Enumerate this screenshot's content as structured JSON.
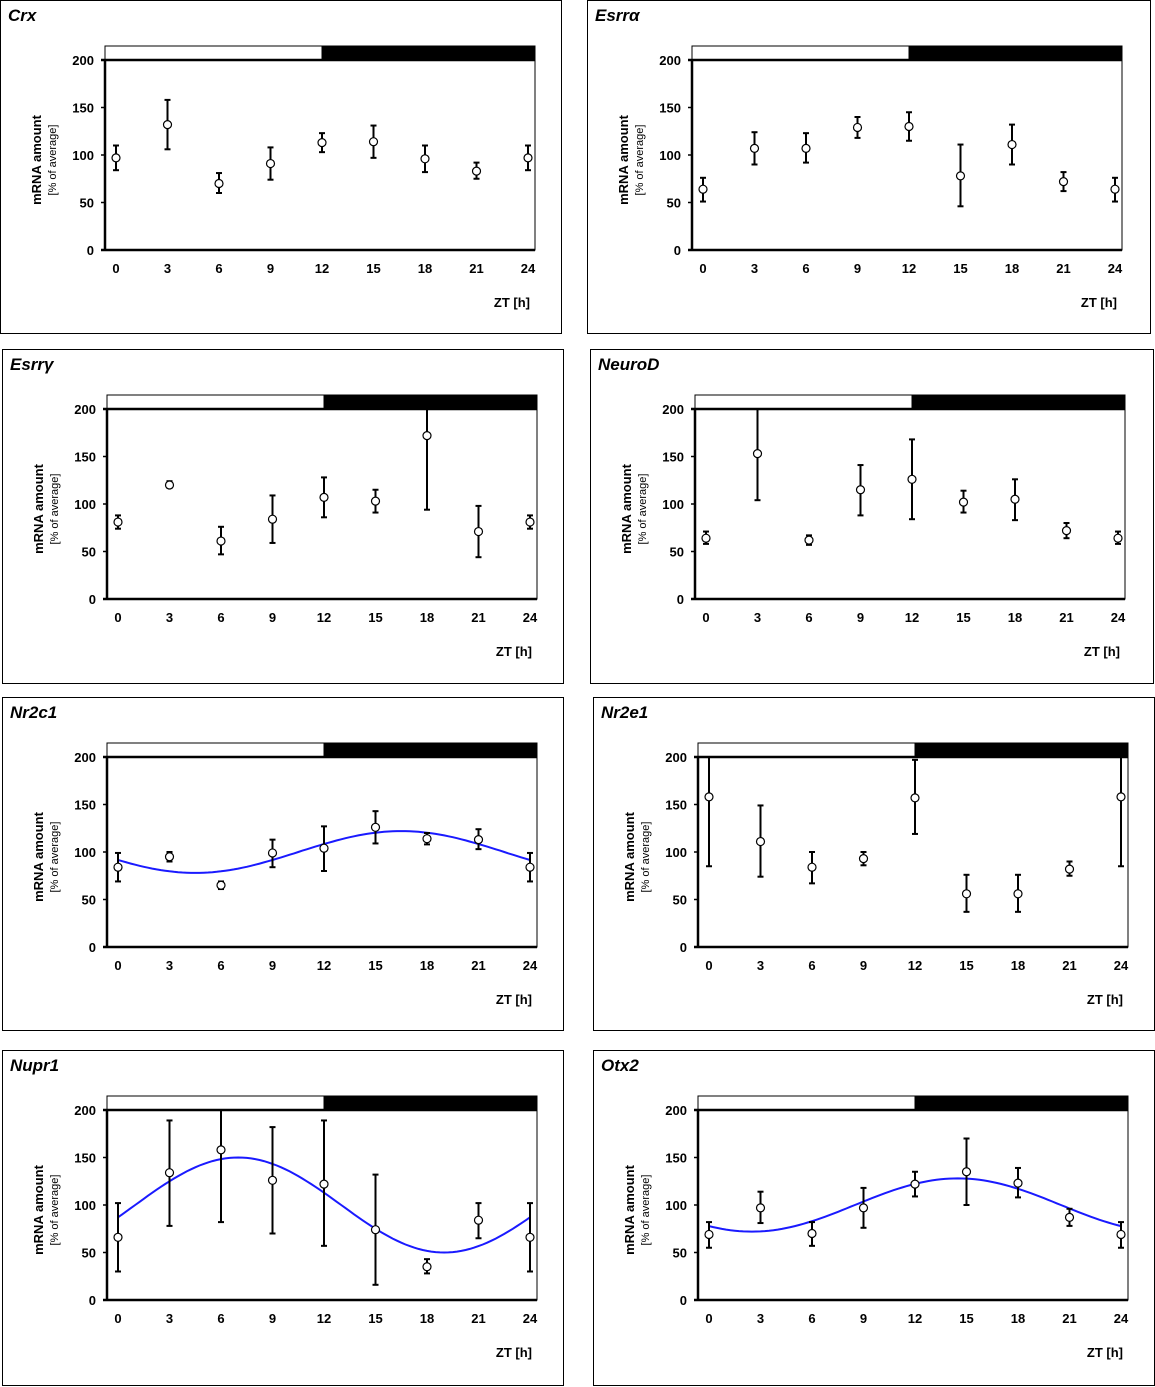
{
  "figure": {
    "y_axis_label_main": "mRNA amount",
    "y_axis_label_sub": "[% of average]",
    "x_axis_label": "ZT [h]",
    "light_phase": "light (ZT 0-12)",
    "dark_phase": "dark (ZT 12-24)",
    "colors": {
      "fit_curve": "#1a1aff",
      "axes": "#000000",
      "marker_fill": "#ffffff",
      "dark_bar": "#000000",
      "light_bar": "#ffffff"
    }
  },
  "chart_data": [
    {
      "type": "scatter",
      "title": "Crx",
      "xlabel": "ZT [h]",
      "ylabel": "mRNA amount [% of average]",
      "x": [
        0,
        3,
        6,
        9,
        12,
        15,
        18,
        21,
        24
      ],
      "xticks": [
        "0",
        "3",
        "6",
        "9",
        "12",
        "15",
        "18",
        "21",
        "24"
      ],
      "yticks": [
        "0",
        "50",
        "100",
        "150",
        "200"
      ],
      "xlim": [
        0,
        24
      ],
      "ylim": [
        0,
        200
      ],
      "grid": false,
      "series": [
        {
          "name": "mean",
          "values": [
            97,
            132,
            70,
            91,
            113,
            114,
            96,
            83,
            97
          ],
          "error_low": [
            84,
            106,
            60,
            74,
            103,
            97,
            82,
            75,
            84
          ],
          "error_high": [
            110,
            158,
            81,
            108,
            123,
            131,
            110,
            92,
            110
          ]
        }
      ],
      "fit": null
    },
    {
      "type": "scatter",
      "title": "Esrrα",
      "xlabel": "ZT [h]",
      "ylabel": "mRNA amount [% of average]",
      "x": [
        0,
        3,
        6,
        9,
        12,
        15,
        18,
        21,
        24
      ],
      "xticks": [
        "0",
        "3",
        "6",
        "9",
        "12",
        "15",
        "18",
        "21",
        "24"
      ],
      "yticks": [
        "0",
        "50",
        "100",
        "150",
        "200"
      ],
      "xlim": [
        0,
        24
      ],
      "ylim": [
        0,
        200
      ],
      "grid": false,
      "series": [
        {
          "name": "mean",
          "values": [
            64,
            107,
            107,
            129,
            130,
            78,
            111,
            72,
            64
          ],
          "error_low": [
            51,
            90,
            92,
            118,
            115,
            46,
            90,
            62,
            51
          ],
          "error_high": [
            76,
            124,
            123,
            140,
            145,
            111,
            132,
            82,
            76
          ]
        }
      ],
      "fit": null
    },
    {
      "type": "scatter",
      "title": "Esrrγ",
      "xlabel": "ZT [h]",
      "ylabel": "mRNA amount [% of average]",
      "x": [
        0,
        3,
        6,
        9,
        12,
        15,
        18,
        21,
        24
      ],
      "xticks": [
        "0",
        "3",
        "6",
        "9",
        "12",
        "15",
        "18",
        "21",
        "24"
      ],
      "yticks": [
        "0",
        "50",
        "100",
        "150",
        "200"
      ],
      "xlim": [
        0,
        24
      ],
      "ylim": [
        0,
        200
      ],
      "grid": false,
      "series": [
        {
          "name": "mean",
          "values": [
            81,
            120,
            61,
            84,
            107,
            103,
            172,
            71,
            81
          ],
          "error_low": [
            74,
            117,
            47,
            59,
            86,
            91,
            94,
            44,
            74
          ],
          "error_high": [
            88,
            124,
            76,
            109,
            128,
            115,
            200,
            98,
            88
          ]
        }
      ],
      "fit": null
    },
    {
      "type": "scatter",
      "title": "NeuroD",
      "xlabel": "ZT [h]",
      "ylabel": "mRNA amount [% of average]",
      "x": [
        0,
        3,
        6,
        9,
        12,
        15,
        18,
        21,
        24
      ],
      "xticks": [
        "0",
        "3",
        "6",
        "9",
        "12",
        "15",
        "18",
        "21",
        "24"
      ],
      "yticks": [
        "0",
        "50",
        "100",
        "150",
        "200"
      ],
      "xlim": [
        0,
        24
      ],
      "ylim": [
        0,
        200
      ],
      "grid": false,
      "series": [
        {
          "name": "mean",
          "values": [
            64,
            153,
            62,
            115,
            126,
            102,
            105,
            72,
            64
          ],
          "error_low": [
            58,
            104,
            57,
            88,
            84,
            91,
            83,
            64,
            58
          ],
          "error_high": [
            71,
            200,
            67,
            141,
            168,
            114,
            126,
            80,
            71
          ]
        }
      ],
      "fit": null
    },
    {
      "type": "scatter",
      "title": "Nr2c1",
      "xlabel": "ZT [h]",
      "ylabel": "mRNA amount [% of average]",
      "x": [
        0,
        3,
        6,
        9,
        12,
        15,
        18,
        21,
        24
      ],
      "xticks": [
        "0",
        "3",
        "6",
        "9",
        "12",
        "15",
        "18",
        "21",
        "24"
      ],
      "yticks": [
        "0",
        "50",
        "100",
        "150",
        "200"
      ],
      "xlim": [
        0,
        24
      ],
      "ylim": [
        0,
        200
      ],
      "grid": false,
      "series": [
        {
          "name": "mean",
          "values": [
            84,
            95,
            65,
            99,
            104,
            126,
            114,
            113,
            84
          ],
          "error_low": [
            69,
            90,
            61,
            84,
            80,
            109,
            108,
            103,
            69
          ],
          "error_high": [
            99,
            100,
            69,
            113,
            127,
            143,
            120,
            124,
            99
          ]
        }
      ],
      "fit": {
        "name": "cosinor fit",
        "mesor": 100,
        "amplitude": 22,
        "peak_zt": 16.5,
        "period": 24
      }
    },
    {
      "type": "scatter",
      "title": "Nr2e1",
      "xlabel": "ZT [h]",
      "ylabel": "mRNA amount [% of average]",
      "x": [
        0,
        3,
        6,
        9,
        12,
        15,
        18,
        21,
        24
      ],
      "xticks": [
        "0",
        "3",
        "6",
        "9",
        "12",
        "15",
        "18",
        "21",
        "24"
      ],
      "yticks": [
        "0",
        "50",
        "100",
        "150",
        "200"
      ],
      "xlim": [
        0,
        24
      ],
      "ylim": [
        0,
        200
      ],
      "grid": false,
      "series": [
        {
          "name": "mean",
          "values": [
            158,
            111,
            84,
            93,
            157,
            56,
            56,
            82,
            158
          ],
          "error_low": [
            85,
            74,
            67,
            86,
            119,
            37,
            37,
            75,
            85
          ],
          "error_high": [
            200,
            149,
            100,
            100,
            197,
            76,
            76,
            90,
            200
          ]
        }
      ],
      "fit": null
    },
    {
      "type": "scatter",
      "title": "Nupr1",
      "xlabel": "ZT [h]",
      "ylabel": "mRNA amount [% of average]",
      "x": [
        0,
        3,
        6,
        9,
        12,
        15,
        18,
        21,
        24
      ],
      "xticks": [
        "0",
        "3",
        "6",
        "9",
        "12",
        "15",
        "18",
        "21",
        "24"
      ],
      "yticks": [
        "0",
        "50",
        "100",
        "150",
        "200"
      ],
      "xlim": [
        0,
        24
      ],
      "ylim": [
        0,
        200
      ],
      "grid": false,
      "series": [
        {
          "name": "mean",
          "values": [
            66,
            134,
            158,
            126,
            122,
            74,
            35,
            84,
            66
          ],
          "error_low": [
            30,
            78,
            82,
            70,
            57,
            16,
            28,
            65,
            30
          ],
          "error_high": [
            102,
            189,
            200,
            182,
            189,
            132,
            43,
            102,
            102
          ]
        }
      ],
      "fit": {
        "name": "cosinor fit",
        "mesor": 100,
        "amplitude": 50,
        "peak_zt": 7,
        "period": 24
      }
    },
    {
      "type": "scatter",
      "title": "Otx2",
      "xlabel": "ZT [h]",
      "ylabel": "mRNA amount [% of average]",
      "x": [
        0,
        3,
        6,
        9,
        12,
        15,
        18,
        21,
        24
      ],
      "xticks": [
        "0",
        "3",
        "6",
        "9",
        "12",
        "15",
        "18",
        "21",
        "24"
      ],
      "yticks": [
        "0",
        "50",
        "100",
        "150",
        "200"
      ],
      "xlim": [
        0,
        24
      ],
      "ylim": [
        0,
        200
      ],
      "grid": false,
      "series": [
        {
          "name": "mean",
          "values": [
            69,
            97,
            70,
            97,
            122,
            135,
            123,
            87,
            69
          ],
          "error_low": [
            55,
            81,
            57,
            76,
            109,
            100,
            108,
            78,
            55
          ],
          "error_high": [
            82,
            114,
            82,
            118,
            135,
            170,
            139,
            96,
            82
          ]
        }
      ],
      "fit": {
        "name": "cosinor fit",
        "mesor": 100,
        "amplitude": 28,
        "peak_zt": 14.5,
        "period": 24
      }
    }
  ]
}
